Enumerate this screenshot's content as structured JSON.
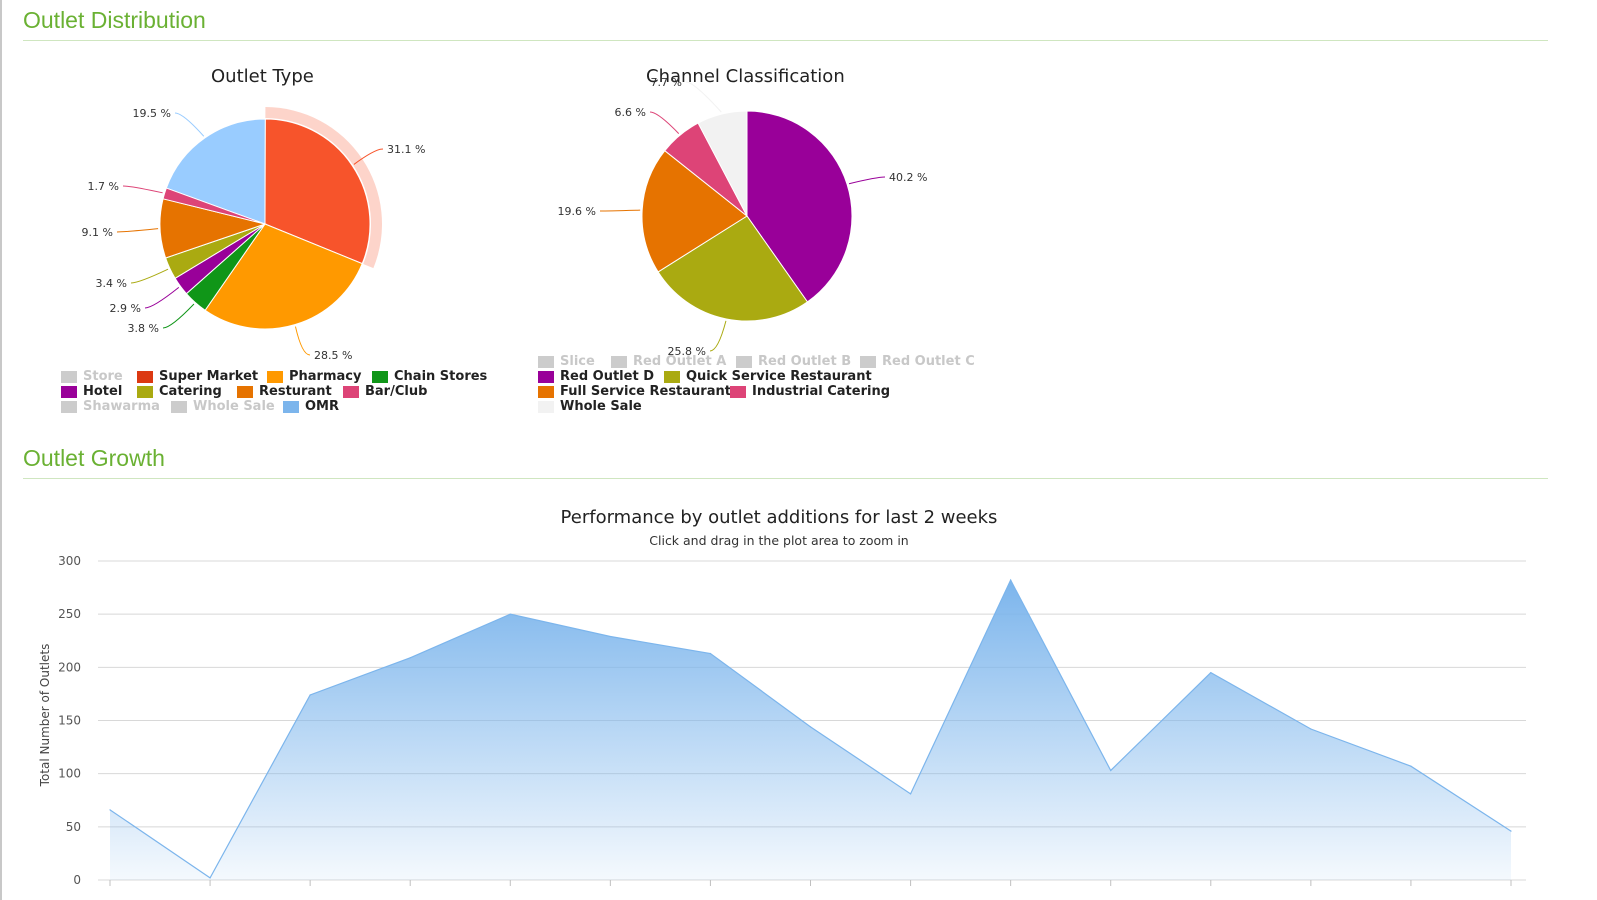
{
  "sections": {
    "distribution_title": "Outlet Distribution",
    "growth_title": "Outlet Growth"
  },
  "chart_data": [
    {
      "type": "pie",
      "title": "Outlet Type",
      "slices": [
        {
          "label": "OMR",
          "value": 19.5,
          "display": "19.5 %",
          "color": "#99ccff"
        },
        {
          "label": "Super Market",
          "value": 31.1,
          "display": "31.1 %",
          "color": "#f7542b",
          "selected": true
        },
        {
          "label": "Pharmacy",
          "value": 28.5,
          "display": "28.5 %",
          "color": "#ff9900"
        },
        {
          "label": "Chain Stores",
          "value": 3.8,
          "display": "3.8 %",
          "color": "#109618"
        },
        {
          "label": "Hotel",
          "value": 2.9,
          "display": "2.9 %",
          "color": "#990099"
        },
        {
          "label": "Catering",
          "value": 3.4,
          "display": "3.4 %",
          "color": "#aaaa11"
        },
        {
          "label": "Resturant",
          "value": 9.1,
          "display": "9.1 %",
          "color": "#e67300"
        },
        {
          "label": "Bar/Club",
          "value": 1.7,
          "display": "1.7 %",
          "color": "#dd4477"
        }
      ],
      "legend": [
        {
          "label": "Store",
          "color": "#cccccc",
          "hidden": true
        },
        {
          "label": "Super Market",
          "color": "#dc3912"
        },
        {
          "label": "Pharmacy",
          "color": "#ff9900"
        },
        {
          "label": "Chain Stores",
          "color": "#109618"
        },
        {
          "label": "Hotel",
          "color": "#990099"
        },
        {
          "label": "Catering",
          "color": "#aaaa11"
        },
        {
          "label": "Resturant",
          "color": "#e67300"
        },
        {
          "label": "Bar/Club",
          "color": "#dd4477"
        },
        {
          "label": "Shawarma",
          "color": "#cccccc",
          "hidden": true
        },
        {
          "label": "Whole Sale",
          "color": "#cccccc",
          "hidden": true
        },
        {
          "label": "OMR",
          "color": "#7cb5ec"
        }
      ]
    },
    {
      "type": "pie",
      "title": "Channel Classification",
      "slices": [
        {
          "label": "Red Outlet D",
          "value": 40.2,
          "display": "40.2 %",
          "color": "#990099"
        },
        {
          "label": "Quick Service Restaurant",
          "value": 25.8,
          "display": "25.8 %",
          "color": "#aaaa11"
        },
        {
          "label": "Full Service Restaurant",
          "value": 19.6,
          "display": "19.6 %",
          "color": "#e67300"
        },
        {
          "label": "Industrial Catering",
          "value": 6.6,
          "display": "6.6 %",
          "color": "#dd4477"
        },
        {
          "label": "Whole Sale",
          "value": 7.7,
          "display": "7.7 %",
          "color": "#f2f2f2"
        }
      ],
      "legend": [
        {
          "label": "Slice",
          "color": "#cccccc",
          "hidden": true
        },
        {
          "label": "Red Outlet A",
          "color": "#cccccc",
          "hidden": true
        },
        {
          "label": "Red Outlet B",
          "color": "#cccccc",
          "hidden": true
        },
        {
          "label": "Red Outlet C",
          "color": "#cccccc",
          "hidden": true
        },
        {
          "label": "Red Outlet D",
          "color": "#990099"
        },
        {
          "label": "Quick Service Restaurant",
          "color": "#aaaa11"
        },
        {
          "label": "Full Service Restaurant",
          "color": "#e67300"
        },
        {
          "label": "Industrial Catering",
          "color": "#dd4477"
        },
        {
          "label": "Whole Sale",
          "color": "#f2f2f2"
        }
      ]
    },
    {
      "type": "area",
      "title": "Performance by outlet additions for last 2 weeks",
      "subtitle": "Click and drag in the plot area to zoom in",
      "ylabel": "Total Number of Outlets",
      "ylim": [
        0,
        300
      ],
      "yticks": [
        0,
        50,
        100,
        150,
        200,
        250,
        300
      ],
      "values": [
        66,
        2,
        174,
        209,
        250,
        229,
        213,
        144,
        81,
        282,
        103,
        195,
        142,
        107,
        46
      ],
      "color": "#7cb5ec",
      "grid": true
    }
  ]
}
